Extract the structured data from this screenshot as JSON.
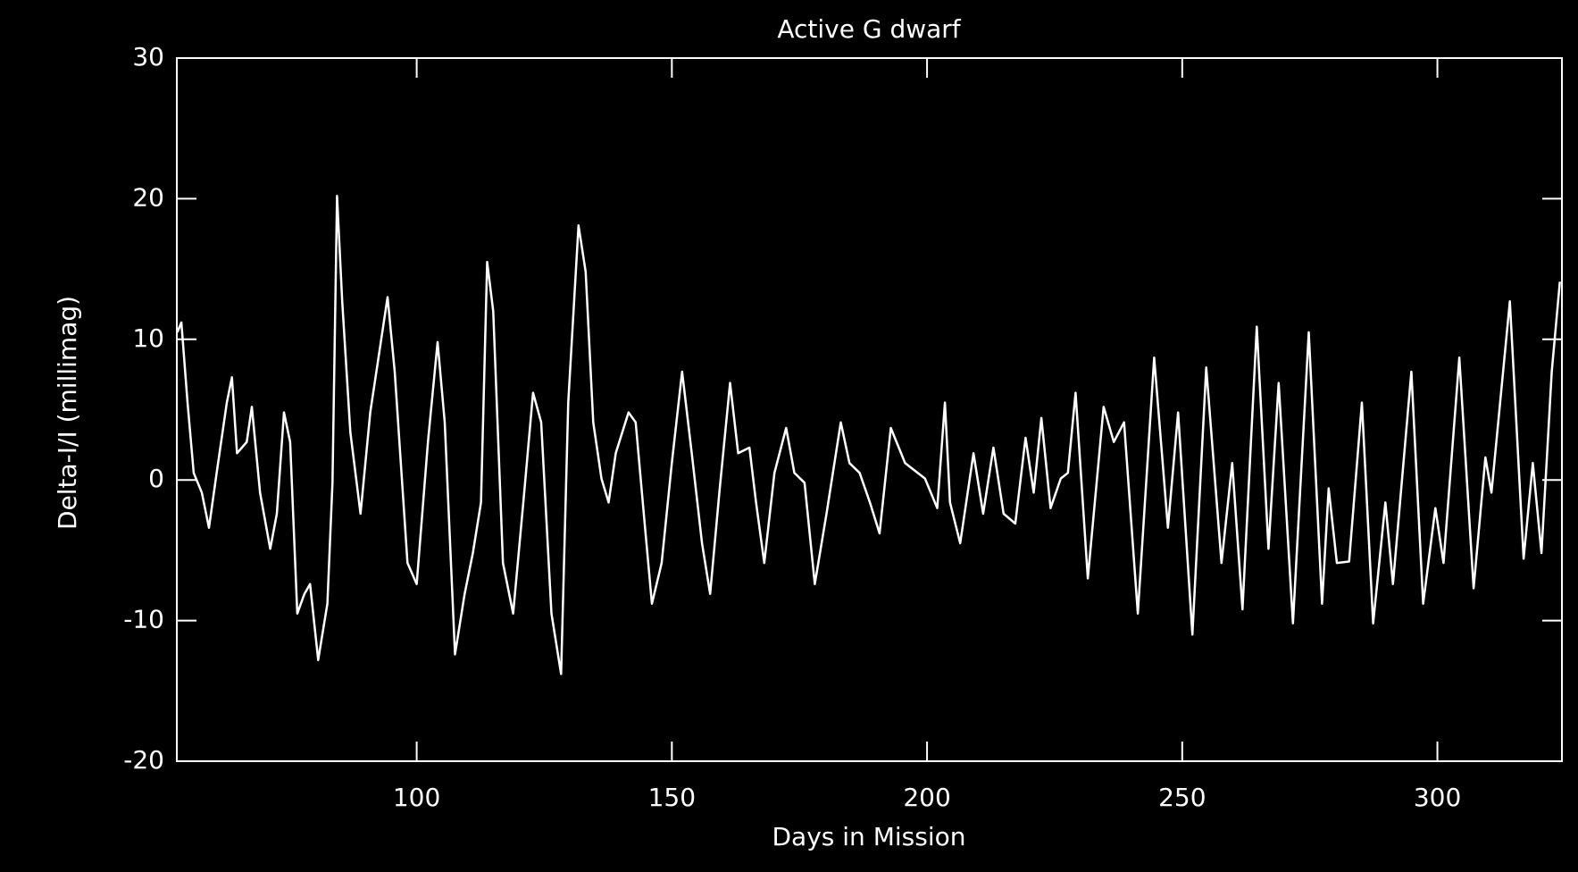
{
  "chart_data": {
    "type": "line",
    "title": "Active G dwarf",
    "x_label": "Days in Mission",
    "y_label": "Delta-I/I (millimag)",
    "color": "#ffffff",
    "xlim": [
      53,
      324.4
    ],
    "ylim": [
      -20,
      30
    ],
    "xticks": [
      100,
      150,
      200,
      250,
      300
    ],
    "yticks": [
      -20,
      -10,
      0,
      10,
      20,
      30
    ],
    "x": [
      53.1,
      53.9,
      55.1,
      56.3,
      57.9,
      59.3,
      60.8,
      62.8,
      63.8,
      64.8,
      66.7,
      67.7,
      69.3,
      71.3,
      72.6,
      74.0,
      75.2,
      76.6,
      78.0,
      79.1,
      80.7,
      82.5,
      83.5,
      84.4,
      85.4,
      87.0,
      89.0,
      90.9,
      94.3,
      95.7,
      98.2,
      100.0,
      102.2,
      104.1,
      105.5,
      107.5,
      109.4,
      111.0,
      112.6,
      113.8,
      115.0,
      116.9,
      118.9,
      120.9,
      122.8,
      124.4,
      126.4,
      128.3,
      129.7,
      131.7,
      133.1,
      134.6,
      136.2,
      137.6,
      139.0,
      141.5,
      142.9,
      144.5,
      146.1,
      148.0,
      150.0,
      152.0,
      153.9,
      155.9,
      157.5,
      159.3,
      161.4,
      163.0,
      165.2,
      166.5,
      168.1,
      170.1,
      172.4,
      174.0,
      176.0,
      178.0,
      180.3,
      183.1,
      184.8,
      186.8,
      188.8,
      190.7,
      192.9,
      195.7,
      199.6,
      202.0,
      203.5,
      204.5,
      206.5,
      209.1,
      211.0,
      213.0,
      215.0,
      217.3,
      219.3,
      220.9,
      222.4,
      224.2,
      226.2,
      227.6,
      229.1,
      231.5,
      234.6,
      236.6,
      238.6,
      241.3,
      244.5,
      247.2,
      249.2,
      252.0,
      254.7,
      257.7,
      259.8,
      261.8,
      264.6,
      266.9,
      268.9,
      271.7,
      274.8,
      277.4,
      278.7,
      280.3,
      282.7,
      285.2,
      287.4,
      289.8,
      291.3,
      294.9,
      297.2,
      299.6,
      301.2,
      304.3,
      307.1,
      309.4,
      310.6,
      314.2,
      316.9,
      318.7,
      320.4,
      322.4,
      324.0
    ],
    "values": [
      10.5,
      11.2,
      5.5,
      0.5,
      -0.9,
      -3.4,
      0.5,
      5.5,
      7.3,
      1.9,
      2.7,
      5.2,
      -0.9,
      -4.9,
      -2.4,
      4.8,
      2.7,
      -9.5,
      -8.1,
      -7.4,
      -12.8,
      -8.8,
      -0.2,
      20.2,
      12.7,
      3.4,
      -2.4,
      4.8,
      13.0,
      7.7,
      -5.9,
      -7.4,
      2.7,
      9.8,
      4.1,
      -12.4,
      -8.1,
      -5.2,
      -1.6,
      15.5,
      12.0,
      -5.9,
      -9.5,
      -1.6,
      6.2,
      4.1,
      -9.5,
      -13.8,
      5.5,
      18.1,
      14.8,
      4.1,
      0.1,
      -1.6,
      1.9,
      4.8,
      4.1,
      -2.4,
      -8.8,
      -5.9,
      1.2,
      7.7,
      1.9,
      -4.5,
      -8.1,
      -0.9,
      6.9,
      1.9,
      2.3,
      -1.6,
      -5.9,
      0.5,
      3.7,
      0.5,
      -0.2,
      -7.4,
      -2.4,
      4.1,
      1.2,
      0.5,
      -1.6,
      -3.8,
      3.7,
      1.2,
      0.1,
      -2.0,
      5.5,
      -1.6,
      -4.5,
      1.9,
      -2.4,
      2.3,
      -2.4,
      -3.1,
      3.0,
      -0.9,
      4.4,
      -2.0,
      0.1,
      0.5,
      6.2,
      -7.0,
      5.2,
      2.7,
      4.1,
      -9.5,
      8.7,
      -3.4,
      4.8,
      -11.0,
      8.0,
      -5.9,
      1.2,
      -9.2,
      10.9,
      -4.9,
      6.9,
      -10.2,
      10.5,
      -8.8,
      -0.6,
      -5.9,
      -5.8,
      5.5,
      -10.2,
      -1.6,
      -7.4,
      7.7,
      -8.8,
      -2.0,
      -5.9,
      8.7,
      -7.7,
      1.6,
      -0.9,
      12.7,
      -5.6,
      1.2,
      -5.2,
      7.7,
      14.1
    ]
  }
}
